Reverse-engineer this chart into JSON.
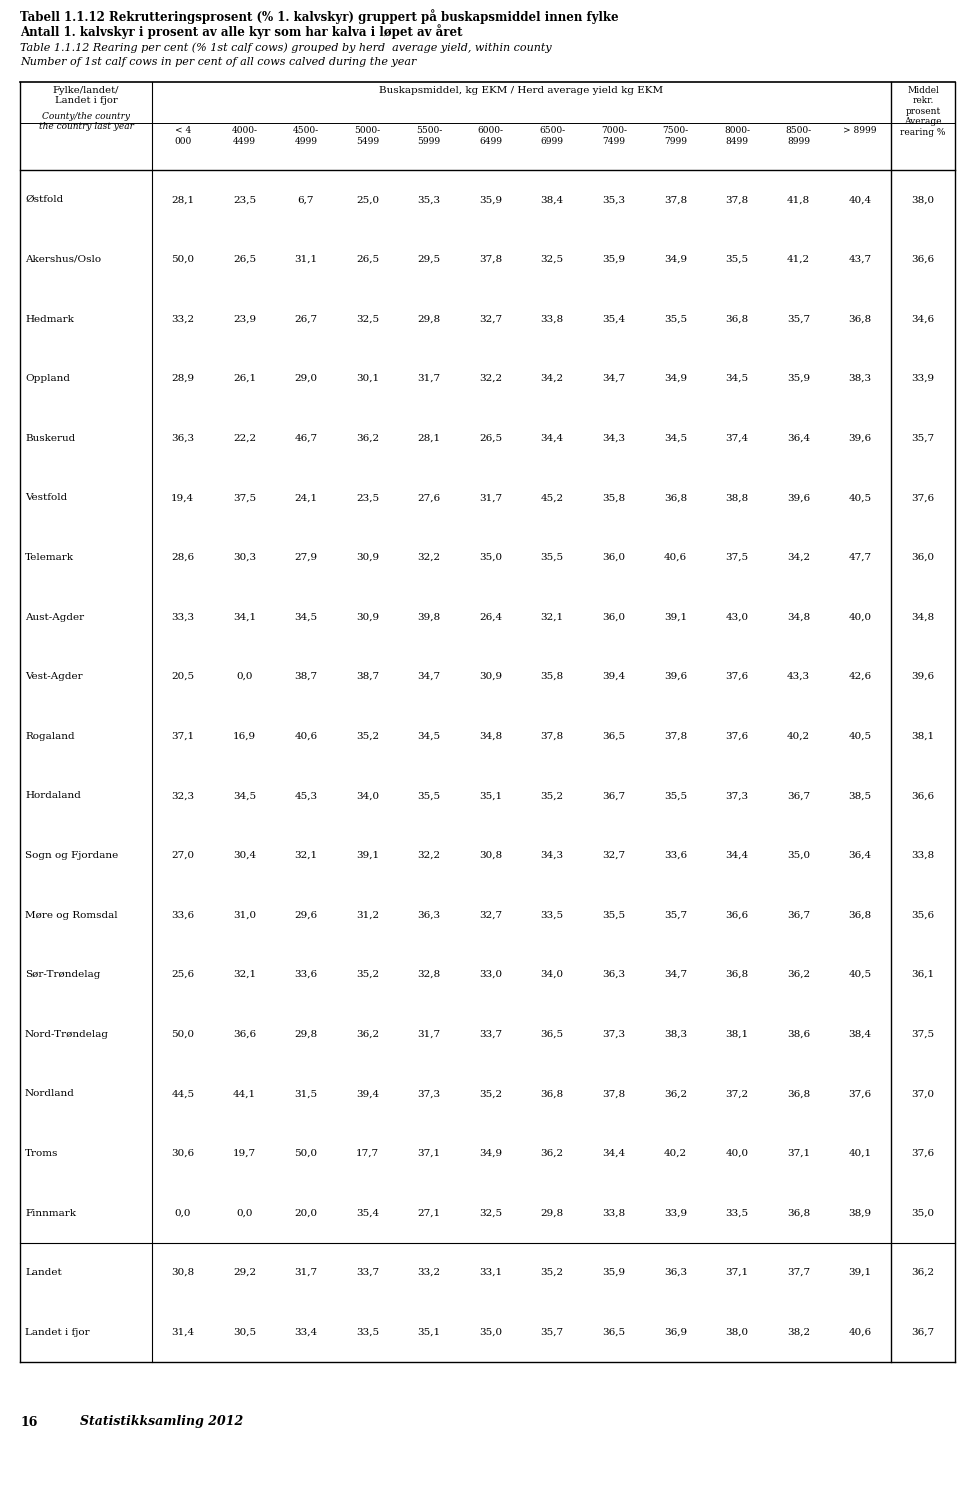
{
  "title_line1": "Tabell 1.1.12 Rekrutteringsprosent (% 1. kalvskyr) gruppert på buskapsmiddel innen fylke",
  "title_line2": "Antall 1. kalvskyr i prosent av alle kyr som har kalva i løpet av året",
  "subtitle_line1": "Table 1.1.12 Rearing per cent (% 1st calf cows) grouped by herd  average yield, within county",
  "subtitle_line2": "Number of 1st calf cows in per cent of all cows calved during the year",
  "footer": "16        Statistikksamling 2012",
  "rows": [
    {
      "name": "Østfold",
      "lt4000": 28.1,
      "c4000_4499": 23.5,
      "c4500_4999": 6.7,
      "c5000_5499": 25.0,
      "c5500_5999": 35.3,
      "c6000_6499": 35.9,
      "c6500_6999": 38.4,
      "c7000_7499": 35.3,
      "c7500_7999": 37.8,
      "c8000_8499": 37.8,
      "c8500_8999": 41.8,
      "gt8999": 40.4,
      "avg": 38.0
    },
    {
      "name": "Akershus/Oslo",
      "lt4000": 50.0,
      "c4000_4499": 26.5,
      "c4500_4999": 31.1,
      "c5000_5499": 26.5,
      "c5500_5999": 29.5,
      "c6000_6499": 37.8,
      "c6500_6999": 32.5,
      "c7000_7499": 35.9,
      "c7500_7999": 34.9,
      "c8000_8499": 35.5,
      "c8500_8999": 41.2,
      "gt8999": 43.7,
      "avg": 36.6
    },
    {
      "name": "Hedmark",
      "lt4000": 33.2,
      "c4000_4499": 23.9,
      "c4500_4999": 26.7,
      "c5000_5499": 32.5,
      "c5500_5999": 29.8,
      "c6000_6499": 32.7,
      "c6500_6999": 33.8,
      "c7000_7499": 35.4,
      "c7500_7999": 35.5,
      "c8000_8499": 36.8,
      "c8500_8999": 35.7,
      "gt8999": 36.8,
      "avg": 34.6
    },
    {
      "name": "Oppland",
      "lt4000": 28.9,
      "c4000_4499": 26.1,
      "c4500_4999": 29.0,
      "c5000_5499": 30.1,
      "c5500_5999": 31.7,
      "c6000_6499": 32.2,
      "c6500_6999": 34.2,
      "c7000_7499": 34.7,
      "c7500_7999": 34.9,
      "c8000_8499": 34.5,
      "c8500_8999": 35.9,
      "gt8999": 38.3,
      "avg": 33.9
    },
    {
      "name": "Buskerud",
      "lt4000": 36.3,
      "c4000_4499": 22.2,
      "c4500_4999": 46.7,
      "c5000_5499": 36.2,
      "c5500_5999": 28.1,
      "c6000_6499": 26.5,
      "c6500_6999": 34.4,
      "c7000_7499": 34.3,
      "c7500_7999": 34.5,
      "c8000_8499": 37.4,
      "c8500_8999": 36.4,
      "gt8999": 39.6,
      "avg": 35.7
    },
    {
      "name": "Vestfold",
      "lt4000": 19.4,
      "c4000_4499": 37.5,
      "c4500_4999": 24.1,
      "c5000_5499": 23.5,
      "c5500_5999": 27.6,
      "c6000_6499": 31.7,
      "c6500_6999": 45.2,
      "c7000_7499": 35.8,
      "c7500_7999": 36.8,
      "c8000_8499": 38.8,
      "c8500_8999": 39.6,
      "gt8999": 40.5,
      "avg": 37.6
    },
    {
      "name": "Telemark",
      "lt4000": 28.6,
      "c4000_4499": 30.3,
      "c4500_4999": 27.9,
      "c5000_5499": 30.9,
      "c5500_5999": 32.2,
      "c6000_6499": 35.0,
      "c6500_6999": 35.5,
      "c7000_7499": 36.0,
      "c7500_7999": 40.6,
      "c8000_8499": 37.5,
      "c8500_8999": 34.2,
      "gt8999": 47.7,
      "avg": 36.0
    },
    {
      "name": "Aust-Agder",
      "lt4000": 33.3,
      "c4000_4499": 34.1,
      "c4500_4999": 34.5,
      "c5000_5499": 30.9,
      "c5500_5999": 39.8,
      "c6000_6499": 26.4,
      "c6500_6999": 32.1,
      "c7000_7499": 36.0,
      "c7500_7999": 39.1,
      "c8000_8499": 43.0,
      "c8500_8999": 34.8,
      "gt8999": 40.0,
      "avg": 34.8
    },
    {
      "name": "Vest-Agder",
      "lt4000": 20.5,
      "c4000_4499": 0.0,
      "c4500_4999": 38.7,
      "c5000_5499": 38.7,
      "c5500_5999": 34.7,
      "c6000_6499": 30.9,
      "c6500_6999": 35.8,
      "c7000_7499": 39.4,
      "c7500_7999": 39.6,
      "c8000_8499": 37.6,
      "c8500_8999": 43.3,
      "gt8999": 42.6,
      "avg": 39.6
    },
    {
      "name": "Rogaland",
      "lt4000": 37.1,
      "c4000_4499": 16.9,
      "c4500_4999": 40.6,
      "c5000_5499": 35.2,
      "c5500_5999": 34.5,
      "c6000_6499": 34.8,
      "c6500_6999": 37.8,
      "c7000_7499": 36.5,
      "c7500_7999": 37.8,
      "c8000_8499": 37.6,
      "c8500_8999": 40.2,
      "gt8999": 40.5,
      "avg": 38.1
    },
    {
      "name": "Hordaland",
      "lt4000": 32.3,
      "c4000_4499": 34.5,
      "c4500_4999": 45.3,
      "c5000_5499": 34.0,
      "c5500_5999": 35.5,
      "c6000_6499": 35.1,
      "c6500_6999": 35.2,
      "c7000_7499": 36.7,
      "c7500_7999": 35.5,
      "c8000_8499": 37.3,
      "c8500_8999": 36.7,
      "gt8999": 38.5,
      "avg": 36.6
    },
    {
      "name": "Sogn og Fjordane",
      "lt4000": 27.0,
      "c4000_4499": 30.4,
      "c4500_4999": 32.1,
      "c5000_5499": 39.1,
      "c5500_5999": 32.2,
      "c6000_6499": 30.8,
      "c6500_6999": 34.3,
      "c7000_7499": 32.7,
      "c7500_7999": 33.6,
      "c8000_8499": 34.4,
      "c8500_8999": 35.0,
      "gt8999": 36.4,
      "avg": 33.8
    },
    {
      "name": "Møre og Romsdal",
      "lt4000": 33.6,
      "c4000_4499": 31.0,
      "c4500_4999": 29.6,
      "c5000_5499": 31.2,
      "c5500_5999": 36.3,
      "c6000_6499": 32.7,
      "c6500_6999": 33.5,
      "c7000_7499": 35.5,
      "c7500_7999": 35.7,
      "c8000_8499": 36.6,
      "c8500_8999": 36.7,
      "gt8999": 36.8,
      "avg": 35.6
    },
    {
      "name": "Sør-Trøndelag",
      "lt4000": 25.6,
      "c4000_4499": 32.1,
      "c4500_4999": 33.6,
      "c5000_5499": 35.2,
      "c5500_5999": 32.8,
      "c6000_6499": 33.0,
      "c6500_6999": 34.0,
      "c7000_7499": 36.3,
      "c7500_7999": 34.7,
      "c8000_8499": 36.8,
      "c8500_8999": 36.2,
      "gt8999": 40.5,
      "avg": 36.1
    },
    {
      "name": "Nord-Trøndelag",
      "lt4000": 50.0,
      "c4000_4499": 36.6,
      "c4500_4999": 29.8,
      "c5000_5499": 36.2,
      "c5500_5999": 31.7,
      "c6000_6499": 33.7,
      "c6500_6999": 36.5,
      "c7000_7499": 37.3,
      "c7500_7999": 38.3,
      "c8000_8499": 38.1,
      "c8500_8999": 38.6,
      "gt8999": 38.4,
      "avg": 37.5
    },
    {
      "name": "Nordland",
      "lt4000": 44.5,
      "c4000_4499": 44.1,
      "c4500_4999": 31.5,
      "c5000_5499": 39.4,
      "c5500_5999": 37.3,
      "c6000_6499": 35.2,
      "c6500_6999": 36.8,
      "c7000_7499": 37.8,
      "c7500_7999": 36.2,
      "c8000_8499": 37.2,
      "c8500_8999": 36.8,
      "gt8999": 37.6,
      "avg": 37.0
    },
    {
      "name": "Troms",
      "lt4000": 30.6,
      "c4000_4499": 19.7,
      "c4500_4999": 50.0,
      "c5000_5499": 17.7,
      "c5500_5999": 37.1,
      "c6000_6499": 34.9,
      "c6500_6999": 36.2,
      "c7000_7499": 34.4,
      "c7500_7999": 40.2,
      "c8000_8499": 40.0,
      "c8500_8999": 37.1,
      "gt8999": 40.1,
      "avg": 37.6
    },
    {
      "name": "Finnmark",
      "lt4000": 0.0,
      "c4000_4499": 0.0,
      "c4500_4999": 20.0,
      "c5000_5499": 35.4,
      "c5500_5999": 27.1,
      "c6000_6499": 32.5,
      "c6500_6999": 29.8,
      "c7000_7499": 33.8,
      "c7500_7999": 33.9,
      "c8000_8499": 33.5,
      "c8500_8999": 36.8,
      "gt8999": 38.9,
      "avg": 35.0
    }
  ],
  "summary_rows": [
    {
      "name": "Landet",
      "lt4000": 30.8,
      "c4000_4499": 29.2,
      "c4500_4999": 31.7,
      "c5000_5499": 33.7,
      "c5500_5999": 33.2,
      "c6000_6499": 33.1,
      "c6500_6999": 35.2,
      "c7000_7499": 35.9,
      "c7500_7999": 36.3,
      "c8000_8499": 37.1,
      "c8500_8999": 37.7,
      "gt8999": 39.1,
      "avg": 36.2
    },
    {
      "name": "Landet i fjor",
      "lt4000": 31.4,
      "c4000_4499": 30.5,
      "c4500_4999": 33.4,
      "c5000_5499": 33.5,
      "c5500_5999": 35.1,
      "c6000_6499": 35.0,
      "c6500_6999": 35.7,
      "c7000_7499": 36.5,
      "c7500_7999": 36.9,
      "c8000_8499": 38.0,
      "c8500_8999": 38.2,
      "gt8999": 40.6,
      "avg": 36.7
    }
  ]
}
